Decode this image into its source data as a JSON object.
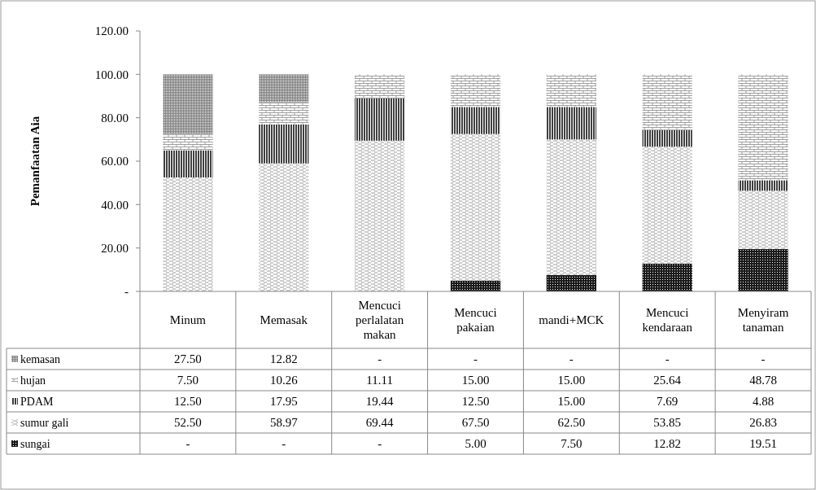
{
  "chart_data": {
    "type": "bar",
    "stacked": true,
    "ylabel": "Pemanfaatan Aia",
    "categories": [
      "Minum",
      "Memasak",
      "Mencuci perlalatan makan",
      "Mencuci pakaian",
      "mandi+MCK",
      "Mencuci kendaraan",
      "Menyiram tanaman"
    ],
    "series": [
      {
        "name": "sungai",
        "color": "#1a1a1a",
        "values": [
          null,
          null,
          null,
          5.0,
          7.5,
          12.82,
          19.51
        ],
        "value_labels": [
          "-",
          "-",
          "-",
          "5.00",
          "7.50",
          "12.82",
          "19.51"
        ]
      },
      {
        "name": "sumur gali",
        "color": "#e0e0e0",
        "values": [
          52.5,
          58.97,
          69.44,
          67.5,
          62.5,
          53.85,
          26.83
        ],
        "value_labels": [
          "52.50",
          "58.97",
          "69.44",
          "67.50",
          "62.50",
          "53.85",
          "26.83"
        ]
      },
      {
        "name": "PDAM",
        "color": "#404040",
        "values": [
          12.5,
          17.95,
          19.44,
          12.5,
          15.0,
          7.69,
          4.88
        ],
        "value_labels": [
          "12.50",
          "17.95",
          "19.44",
          "12.50",
          "15.00",
          "7.69",
          "4.88"
        ]
      },
      {
        "name": "hujan",
        "color": "#c0c0c0",
        "values": [
          7.5,
          10.26,
          11.11,
          15.0,
          15.0,
          25.64,
          48.78
        ],
        "value_labels": [
          "7.50",
          "10.26",
          "11.11",
          "15.00",
          "15.00",
          "25.64",
          "48.78"
        ]
      },
      {
        "name": "kemasan",
        "color": "#808080",
        "values": [
          27.5,
          12.82,
          null,
          null,
          null,
          null,
          null
        ],
        "value_labels": [
          "27.50",
          "12.82",
          "-",
          "-",
          "-",
          "-",
          "-"
        ]
      }
    ],
    "ylim": [
      0,
      120
    ],
    "yticks": [
      {
        "value": 0,
        "label": "-"
      },
      {
        "value": 20,
        "label": "20.00"
      },
      {
        "value": 40,
        "label": "40.00"
      },
      {
        "value": 60,
        "label": "60.00"
      },
      {
        "value": 80,
        "label": "80.00"
      },
      {
        "value": 100,
        "label": "100.00"
      },
      {
        "value": 120,
        "label": "120.00"
      }
    ],
    "grid": false,
    "legend": "bottom"
  }
}
